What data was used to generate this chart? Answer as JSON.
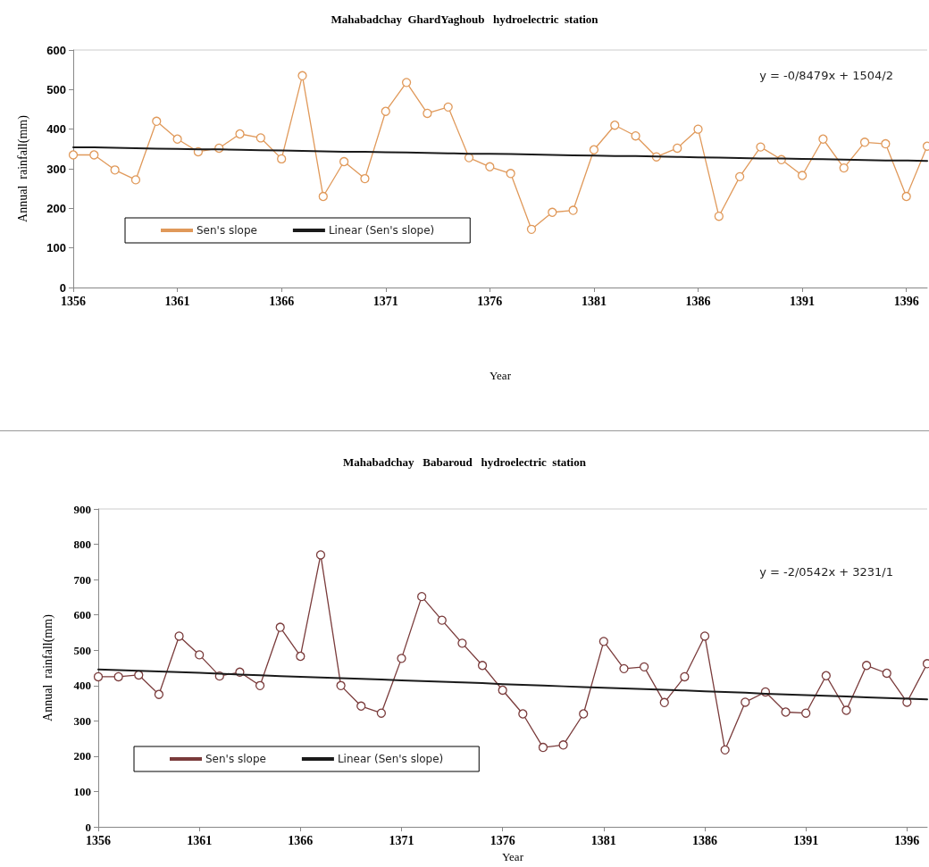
{
  "chart_data": [
    {
      "type": "line",
      "title": "Mahabadchay  GhardYaghoub   hydroelectric  station",
      "xlabel": "Year",
      "ylabel": "Annual  rainfall(mm)",
      "annotations": [
        "y = -0/8479x + 1504/2"
      ],
      "x": [
        1356,
        1357,
        1358,
        1359,
        1360,
        1361,
        1362,
        1363,
        1364,
        1365,
        1366,
        1367,
        1368,
        1369,
        1370,
        1371,
        1372,
        1373,
        1374,
        1375,
        1376,
        1377,
        1378,
        1379,
        1380,
        1381,
        1382,
        1383,
        1384,
        1385,
        1386,
        1387,
        1388,
        1389,
        1390,
        1391,
        1392,
        1393,
        1394,
        1395,
        1396,
        1397
      ],
      "series": [
        {
          "name": "Sen's slope",
          "color": "#e0995a",
          "marker": "circle",
          "values": [
            335,
            335,
            297,
            272,
            420,
            375,
            343,
            352,
            388,
            378,
            325,
            535,
            230,
            318,
            275,
            445,
            518,
            440,
            456,
            328,
            305,
            288,
            147,
            190,
            195,
            348,
            410,
            383,
            330,
            352,
            400,
            180,
            280,
            355,
            323,
            283,
            375,
            302,
            367,
            363,
            230,
            357
          ]
        },
        {
          "name": "Linear (Sen's slope)",
          "type": "line",
          "color": "#1a1a1a",
          "marker": "none",
          "values": [
            354,
            354,
            353,
            352,
            351,
            350,
            349,
            349,
            348,
            347,
            346,
            345,
            344,
            343,
            343,
            342,
            341,
            340,
            339,
            338,
            338,
            337,
            336,
            335,
            334,
            333,
            332,
            332,
            331,
            330,
            329,
            328,
            327,
            326,
            326,
            325,
            324,
            323,
            322,
            321,
            321,
            320
          ]
        }
      ],
      "xlim": [
        1356,
        1397
      ],
      "xticks": [
        1356,
        1361,
        1366,
        1371,
        1376,
        1381,
        1386,
        1391,
        1396
      ],
      "ylim": [
        0,
        600
      ],
      "yticks": [
        0,
        100,
        200,
        300,
        400,
        500,
        600
      ],
      "grid": false,
      "legend": "bottom left",
      "line_style": "solid"
    },
    {
      "type": "line",
      "title": "Mahabadchay   Babaroud   hydroelectric  station",
      "xlabel": "Year",
      "ylabel": "Annual  rainfall(mm)",
      "annotations": [
        "y = -2/0542x + 3231/1"
      ],
      "x": [
        1356,
        1357,
        1358,
        1359,
        1360,
        1361,
        1362,
        1363,
        1364,
        1365,
        1366,
        1367,
        1368,
        1369,
        1370,
        1371,
        1372,
        1373,
        1374,
        1375,
        1376,
        1377,
        1378,
        1379,
        1380,
        1381,
        1382,
        1383,
        1384,
        1385,
        1386,
        1387,
        1388,
        1389,
        1390,
        1391,
        1392,
        1393,
        1394,
        1395,
        1396,
        1397
      ],
      "series": [
        {
          "name": "Sen's slope",
          "color": "#7a3b3b",
          "marker": "circle",
          "values": [
            425,
            425,
            430,
            375,
            540,
            487,
            427,
            438,
            400,
            565,
            483,
            770,
            400,
            342,
            322,
            477,
            652,
            585,
            520,
            457,
            387,
            320,
            225,
            232,
            320,
            525,
            448,
            453,
            352,
            425,
            540,
            218,
            353,
            382,
            325,
            322,
            428,
            330,
            457,
            435,
            353,
            462
          ]
        },
        {
          "name": "Linear (Sen's slope)",
          "type": "line",
          "color": "#1a1a1a",
          "marker": "none",
          "values": [
            446,
            444,
            442,
            440,
            438,
            436,
            434,
            431,
            429,
            427,
            425,
            423,
            421,
            419,
            417,
            415,
            413,
            411,
            409,
            407,
            404,
            402,
            400,
            398,
            396,
            394,
            392,
            390,
            388,
            386,
            384,
            382,
            380,
            377,
            375,
            373,
            371,
            369,
            367,
            365,
            363,
            361
          ]
        }
      ],
      "xlim": [
        1356,
        1397
      ],
      "xticks": [
        1356,
        1361,
        1366,
        1371,
        1376,
        1381,
        1386,
        1391,
        1396
      ],
      "ylim": [
        0,
        900
      ],
      "yticks": [
        0,
        100,
        200,
        300,
        400,
        500,
        600,
        700,
        800,
        900
      ],
      "grid": false,
      "legend": "bottom left",
      "line_style": "solid"
    }
  ]
}
